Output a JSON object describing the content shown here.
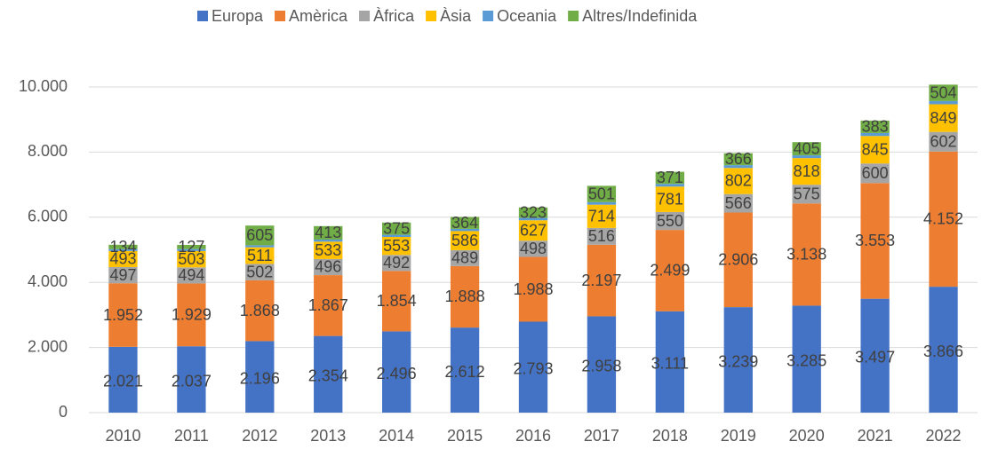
{
  "chart_data": {
    "type": "stacked_bar",
    "categories": [
      "2010",
      "2011",
      "2012",
      "2013",
      "2014",
      "2015",
      "2016",
      "2017",
      "2018",
      "2019",
      "2020",
      "2021",
      "2022"
    ],
    "series": [
      {
        "name": "Europa",
        "color": "#4472c4",
        "values": [
          2021,
          2037,
          2196,
          2354,
          2496,
          2612,
          2793,
          2958,
          3111,
          3239,
          3285,
          3497,
          3866
        ],
        "value_labels": [
          "2.021",
          "2.037",
          "2.196",
          "2.354",
          "2.496",
          "2.612",
          "2.793",
          "2.958",
          "3.111",
          "3.239",
          "3.285",
          "3.497",
          "3.866"
        ]
      },
      {
        "name": "Amèrica",
        "color": "#ed7d31",
        "values": [
          1952,
          1929,
          1868,
          1867,
          1854,
          1888,
          1988,
          2197,
          2499,
          2906,
          3138,
          3553,
          4152
        ],
        "value_labels": [
          "1.952",
          "1.929",
          "1.868",
          "1.867",
          "1.854",
          "1.888",
          "1.988",
          "2.197",
          "2.499",
          "2.906",
          "3.138",
          "3.553",
          "4.152"
        ]
      },
      {
        "name": "Àfrica",
        "color": "#a5a5a5",
        "values": [
          497,
          494,
          502,
          496,
          492,
          489,
          498,
          516,
          550,
          566,
          575,
          600,
          602
        ]
      },
      {
        "name": "Àsia",
        "color": "#ffc000",
        "values": [
          493,
          503,
          511,
          533,
          553,
          586,
          627,
          714,
          781,
          802,
          818,
          845,
          849
        ]
      },
      {
        "name": "Oceania",
        "color": "#5b9bd5",
        "values": [
          58,
          60,
          62,
          64,
          66,
          68,
          72,
          78,
          82,
          86,
          84,
          90,
          98
        ]
      },
      {
        "name": "Altres/Indefinida",
        "color": "#70ad47",
        "values": [
          134,
          127,
          605,
          413,
          375,
          364,
          323,
          501,
          371,
          366,
          405,
          383,
          504
        ]
      }
    ],
    "ylim": [
      0,
      10000
    ],
    "yticks": [
      0,
      {
        "value": 2000,
        "label": "2.000"
      },
      {
        "value": 4000,
        "label": "4.000"
      },
      {
        "value": 6000,
        "label": "6.000"
      },
      {
        "value": 8000,
        "label": "8.000"
      },
      {
        "value": 10000,
        "label": "10.000"
      }
    ],
    "grid": true,
    "legend": "top"
  }
}
